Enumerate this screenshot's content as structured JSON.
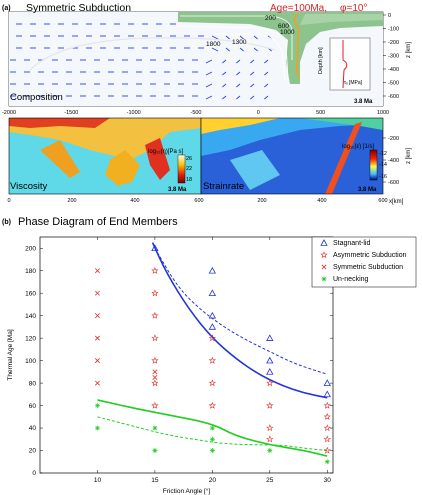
{
  "panel_a": {
    "label": "(a)",
    "title": "Symmetric Subduction",
    "age_text": "Age=100Ma,",
    "phi_text": "φ=10°",
    "composition_label": "Composition",
    "viscosity_label": "Viscosity",
    "strainrate_label": "Strainrate",
    "time_label": "3.8 Ma",
    "contours": [
      "200",
      "600",
      "1000",
      "1300",
      "1800"
    ],
    "depth_axis_label": "z [km]",
    "depth_ticks": [
      "0",
      "-100",
      "-200",
      "-300",
      "-400",
      "-500",
      "-600"
    ],
    "lower_depth_ticks": [
      "-200",
      "-400",
      "-600"
    ],
    "x_ticks_top": [
      "-2000",
      "-1500",
      "-1000",
      "-500",
      "0",
      "500",
      "1000"
    ],
    "x_ticks_bottom": [
      "0",
      "200",
      "400",
      "600",
      "0",
      "200",
      "400",
      "600"
    ],
    "x_axis_label": "x[km]",
    "inset_ylabel": "Depth [km]",
    "inset_xlabel": "τᵢᵢ [MPa]",
    "viscosity_cbar_label": "log₁₀(η)[Pa s]",
    "viscosity_cbar_ticks": [
      "26",
      "22",
      "18"
    ],
    "strainrate_cbar_label": "log₁₀(ε̇) [1/s]",
    "strainrate_cbar_ticks": [
      "-12",
      "-14",
      "-16"
    ]
  },
  "panel_b": {
    "label": "(b)",
    "title": "Phase Diagram of End Members"
  },
  "colors": {
    "stagnant": "#2233dd",
    "asymmetric": "#e0302a",
    "symmetric": "#e0302a",
    "unnecking": "#22cc22",
    "mantle_blue": "#2b3ef2",
    "slab_green": "#8dc48e"
  },
  "chart_data": {
    "type": "scatter",
    "title": "Phase Diagram of End Members",
    "xlabel": "Friction Angle [°]",
    "ylabel": "Thermal Age [Ma]",
    "xlim": [
      5,
      30.5
    ],
    "ylim": [
      0,
      210
    ],
    "x_ticks": [
      "10",
      "15",
      "20",
      "25",
      "30"
    ],
    "y_ticks": [
      "0",
      "20",
      "40",
      "60",
      "80",
      "100",
      "120",
      "140",
      "160",
      "180",
      "200"
    ],
    "legend_position": "top-right",
    "series": [
      {
        "name": "Stagnant-lid",
        "marker": "triangle",
        "points": [
          [
            15,
            200
          ],
          [
            20,
            180
          ],
          [
            20,
            160
          ],
          [
            20,
            140
          ],
          [
            20,
            130
          ],
          [
            25,
            120
          ],
          [
            25,
            100
          ],
          [
            25,
            90
          ],
          [
            30,
            80
          ],
          [
            30,
            70
          ]
        ]
      },
      {
        "name": "Asymmetric Subduction",
        "marker": "star",
        "points": [
          [
            15,
            180
          ],
          [
            15,
            160
          ],
          [
            15,
            140
          ],
          [
            15,
            120
          ],
          [
            15,
            100
          ],
          [
            15,
            80
          ],
          [
            15,
            60
          ],
          [
            20,
            120
          ],
          [
            20,
            100
          ],
          [
            20,
            80
          ],
          [
            20,
            60
          ],
          [
            25,
            80
          ],
          [
            25,
            60
          ],
          [
            25,
            40
          ],
          [
            25,
            30
          ],
          [
            30,
            60
          ],
          [
            30,
            50
          ],
          [
            30,
            40
          ],
          [
            30,
            30
          ],
          [
            30,
            20
          ]
        ]
      },
      {
        "name": "Symmetric Subduction",
        "marker": "cross",
        "points": [
          [
            10,
            180
          ],
          [
            10,
            160
          ],
          [
            10,
            140
          ],
          [
            10,
            120
          ],
          [
            10,
            100
          ],
          [
            10,
            80
          ],
          [
            15,
            90
          ],
          [
            15,
            85
          ]
        ]
      },
      {
        "name": "Un-necking",
        "marker": "asterisk",
        "points": [
          [
            10,
            60
          ],
          [
            10,
            40
          ],
          [
            15,
            40
          ],
          [
            15,
            20
          ],
          [
            20,
            40
          ],
          [
            20,
            30
          ],
          [
            20,
            20
          ],
          [
            25,
            20
          ],
          [
            30,
            10
          ]
        ]
      }
    ],
    "boundaries": [
      {
        "style": "solid",
        "color": "blue",
        "points": [
          [
            14.8,
            205
          ],
          [
            16,
            178
          ],
          [
            18,
            145
          ],
          [
            20,
            120
          ],
          [
            22,
            102
          ],
          [
            24,
            88
          ],
          [
            26,
            78
          ],
          [
            28,
            71
          ],
          [
            30,
            67
          ]
        ]
      },
      {
        "style": "dashed",
        "color": "blue",
        "points": [
          [
            15,
            200
          ],
          [
            17,
            165
          ],
          [
            19,
            145
          ],
          [
            21,
            130
          ],
          [
            23,
            118
          ],
          [
            25,
            108
          ],
          [
            27,
            98
          ],
          [
            29,
            91
          ],
          [
            30,
            88
          ]
        ]
      },
      {
        "style": "solid",
        "color": "green",
        "points": [
          [
            10,
            65
          ],
          [
            13,
            58
          ],
          [
            16,
            52
          ],
          [
            20,
            44
          ],
          [
            22,
            33
          ],
          [
            25,
            25
          ],
          [
            28,
            20
          ],
          [
            30,
            15
          ]
        ]
      },
      {
        "style": "dashed",
        "color": "green",
        "points": [
          [
            10,
            50
          ],
          [
            13,
            42
          ],
          [
            16,
            34
          ],
          [
            19,
            29
          ],
          [
            21,
            26
          ],
          [
            24,
            25
          ],
          [
            26,
            25
          ],
          [
            28,
            22
          ],
          [
            30,
            20
          ]
        ]
      }
    ]
  }
}
